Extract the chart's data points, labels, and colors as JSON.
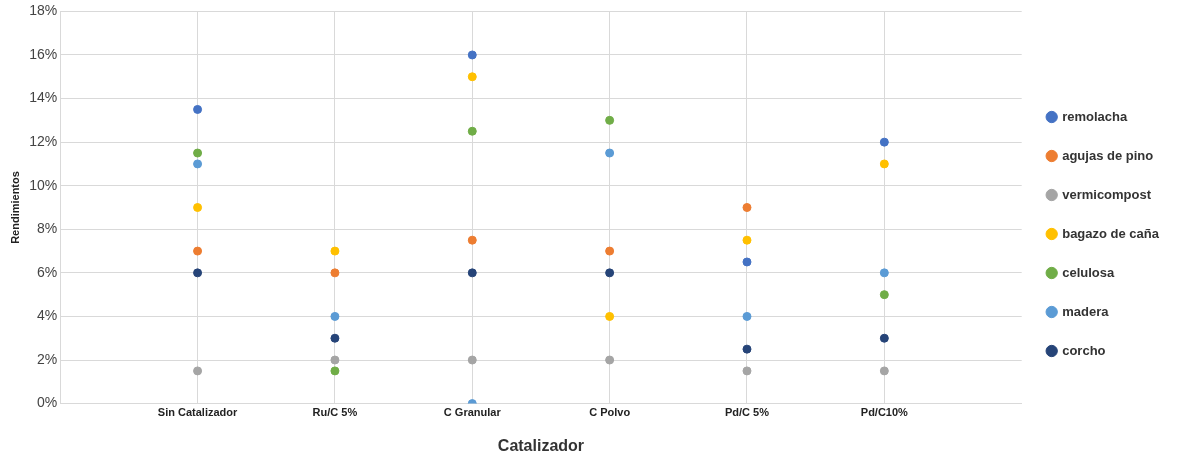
{
  "chart_data": {
    "type": "scatter",
    "xlabel": "Catalizador",
    "ylabel": "Rendimientos",
    "categories": [
      "Sin Catalizador",
      "Ru/C 5%",
      "C Granular",
      "C Polvo",
      "Pd/C 5%",
      "Pd/C10%"
    ],
    "ylim": [
      0,
      18
    ],
    "yticks": [
      {
        "value": 0,
        "label": "0%"
      },
      {
        "value": 2,
        "label": "2%"
      },
      {
        "value": 4,
        "label": "4%"
      },
      {
        "value": 6,
        "label": "6%"
      },
      {
        "value": 8,
        "label": "8%"
      },
      {
        "value": 10,
        "label": "10%"
      },
      {
        "value": 12,
        "label": "12%"
      },
      {
        "value": 14,
        "label": "14%"
      },
      {
        "value": 16,
        "label": "16%"
      },
      {
        "value": 18,
        "label": "18%"
      }
    ],
    "grid": true,
    "legend": "right",
    "marker": "circle",
    "series": [
      {
        "name": "remolacha",
        "color": "#4472c4",
        "values": [
          13.5,
          null,
          16,
          null,
          6.5,
          12
        ]
      },
      {
        "name": "agujas de pino",
        "color": "#ed7d31",
        "values": [
          7,
          6,
          7.5,
          7,
          9,
          null
        ]
      },
      {
        "name": "vermicompost",
        "color": "#a5a5a5",
        "values": [
          1.5,
          2,
          2,
          2,
          1.5,
          1.5
        ]
      },
      {
        "name": "bagazo de caña",
        "color": "#ffc000",
        "values": [
          9,
          7,
          15,
          4,
          7.5,
          11
        ]
      },
      {
        "name": "celulosa",
        "color": "#70ad47",
        "values": [
          11.5,
          1.5,
          12.5,
          13,
          null,
          5
        ]
      },
      {
        "name": "madera",
        "color": "#5b9bd5",
        "values": [
          11,
          4,
          0,
          11.5,
          4,
          6
        ]
      },
      {
        "name": "corcho",
        "color": "#264478",
        "values": [
          6,
          3,
          6,
          6,
          2.5,
          3
        ]
      }
    ]
  }
}
